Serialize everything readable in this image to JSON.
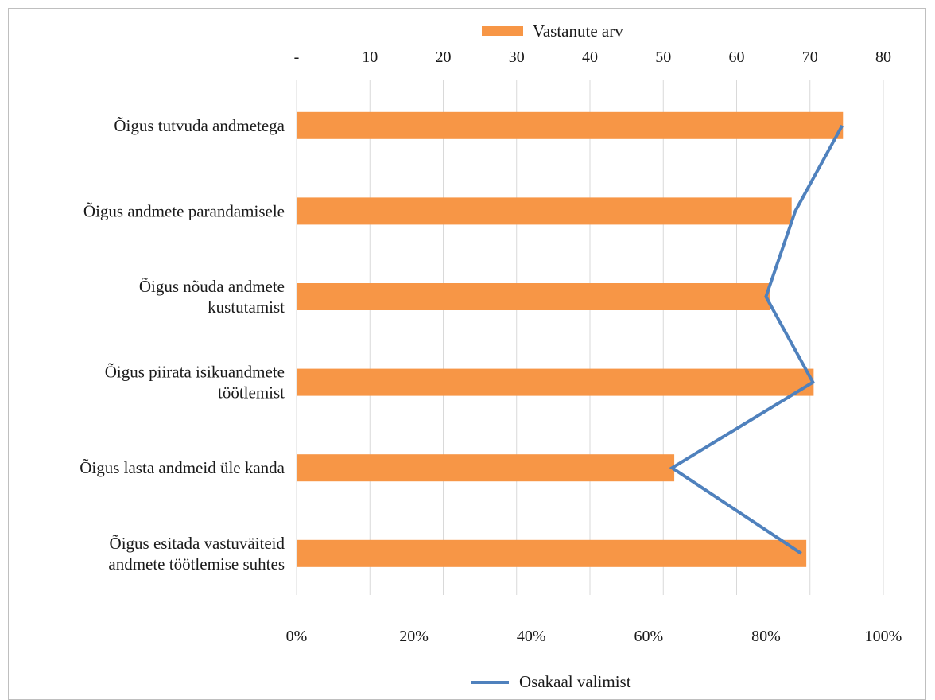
{
  "chart_data": {
    "type": "bar",
    "categories": [
      "Õigus tutvuda andmetega",
      "Õigus andmete parandamisele",
      "Õigus nõuda andmete kustutamist",
      "Õigus piirata isikuandmete töötlemist",
      "Õigus lasta andmeid üle kanda",
      "Õigus esitada vastuväiteid andmete töötlemise suhtes"
    ],
    "category_lines": [
      [
        "Õigus tutvuda andmetega"
      ],
      [
        "Õigus andmete parandamisele"
      ],
      [
        "Õigus nõuda andmete",
        "kustutamist"
      ],
      [
        "Õigus piirata isikuandmete",
        "töötlemist"
      ],
      [
        "Õigus lasta andmeid üle kanda"
      ],
      [
        "Õigus esitada vastuväiteid",
        "andmete töötlemise suhtes"
      ]
    ],
    "series": [
      {
        "name": "Vastanute arv",
        "type": "bar",
        "axis": "top",
        "values": [
          74.5,
          67.5,
          64.5,
          70.5,
          51.5,
          69.5
        ],
        "color": "#f79646"
      },
      {
        "name": "Osakaal valimist",
        "type": "line",
        "axis": "bottom",
        "values": [
          93,
          85,
          80,
          88,
          64,
          86
        ],
        "color": "#4f81bd"
      }
    ],
    "top_axis": {
      "range": [
        0,
        80
      ],
      "ticks": [
        0,
        10,
        20,
        30,
        40,
        50,
        60,
        70,
        80
      ],
      "tick_labels": [
        "-",
        "10",
        "20",
        "30",
        "40",
        "50",
        "60",
        "70",
        "80"
      ]
    },
    "bottom_axis": {
      "range": [
        0,
        100
      ],
      "ticks": [
        0,
        20,
        40,
        60,
        80,
        100
      ],
      "tick_labels": [
        "0%",
        "20%",
        "40%",
        "60%",
        "80%",
        "100%"
      ]
    },
    "grid": true,
    "legend": {
      "top": "Vastanute arv",
      "bottom": "Osakaal valimist"
    }
  }
}
